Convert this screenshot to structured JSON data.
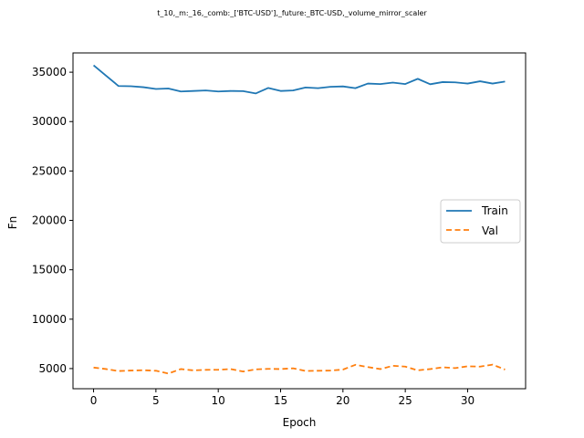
{
  "chart_data": {
    "type": "line",
    "title": "t_10,_m:_16,_comb:_['BTC-USD'],_future:_BTC-USD,_volume_mirror_scaler",
    "xlabel": "Epoch",
    "ylabel": "Fn",
    "xlim": [
      -1.65,
      34.65
    ],
    "ylim": [
      2960,
      36950
    ],
    "xticks": [
      0,
      5,
      10,
      15,
      20,
      25,
      30
    ],
    "yticks": [
      5000,
      10000,
      15000,
      20000,
      25000,
      30000,
      35000
    ],
    "grid": false,
    "legend_position": "center-right",
    "x": [
      0,
      1,
      2,
      3,
      4,
      5,
      6,
      7,
      8,
      9,
      10,
      11,
      12,
      13,
      14,
      15,
      16,
      17,
      18,
      19,
      20,
      21,
      22,
      23,
      24,
      25,
      26,
      27,
      28,
      29,
      30,
      31,
      32,
      33
    ],
    "series": [
      {
        "name": "Train",
        "color": "#1f77b4",
        "dash": "solid",
        "values": [
          35700,
          34650,
          33600,
          33580,
          33480,
          33300,
          33350,
          33050,
          33100,
          33150,
          33050,
          33100,
          33080,
          32850,
          33400,
          33100,
          33150,
          33450,
          33380,
          33520,
          33560,
          33380,
          33850,
          33800,
          33950,
          33800,
          34330,
          33780,
          34000,
          33970,
          33850,
          34080,
          33850,
          34050
        ]
      },
      {
        "name": "Val",
        "color": "#ff7f0e",
        "dash": "dashed",
        "values": [
          5100,
          4950,
          4750,
          4800,
          4830,
          4780,
          4500,
          4950,
          4820,
          4870,
          4880,
          4950,
          4700,
          4920,
          4970,
          4950,
          5030,
          4760,
          4780,
          4800,
          4900,
          5380,
          5150,
          4950,
          5280,
          5200,
          4820,
          4950,
          5130,
          5050,
          5230,
          5200,
          5400,
          4900
        ]
      }
    ]
  }
}
